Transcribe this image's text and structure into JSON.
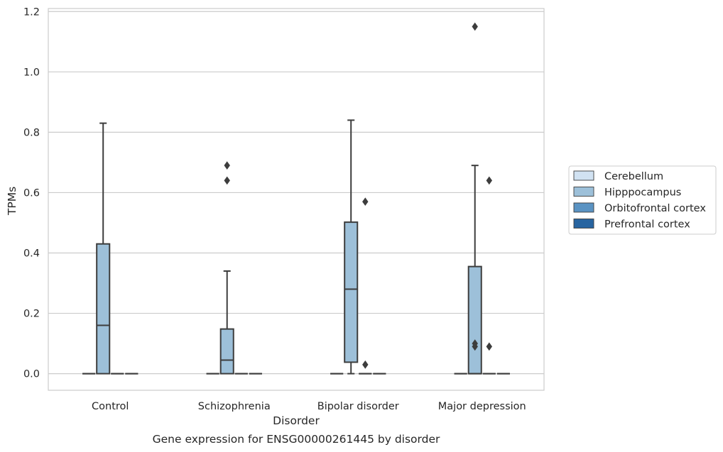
{
  "chart_data": {
    "type": "box",
    "title": "",
    "caption": "Gene expression for ENSG00000261445 by disorder",
    "xlabel": "Disorder",
    "ylabel": "TPMs",
    "ylim": [
      -0.055,
      1.21
    ],
    "yticks": [
      0.0,
      0.2,
      0.4,
      0.6,
      0.8,
      1.0,
      1.2
    ],
    "ytick_labels": [
      "0.0",
      "0.2",
      "0.4",
      "0.6",
      "0.8",
      "1.0",
      "1.2"
    ],
    "grid": "horizontal",
    "legend_position": "right",
    "categories": [
      "Control",
      "Schizophrenia",
      "Bipolar disorder",
      "Major depression"
    ],
    "series": [
      {
        "name": "Cerebellum",
        "color": "#d1e2f2",
        "boxes": [
          {
            "q1": 0,
            "median": 0,
            "q3": 0,
            "whisker_low": 0,
            "whisker_high": 0,
            "outliers": []
          },
          {
            "q1": 0,
            "median": 0,
            "q3": 0,
            "whisker_low": 0,
            "whisker_high": 0,
            "outliers": []
          },
          {
            "q1": 0,
            "median": 0,
            "q3": 0,
            "whisker_low": 0,
            "whisker_high": 0,
            "outliers": []
          },
          {
            "q1": 0,
            "median": 0,
            "q3": 0,
            "whisker_low": 0,
            "whisker_high": 0,
            "outliers": []
          }
        ]
      },
      {
        "name": "Hipppocampus",
        "color": "#9dc0d9",
        "boxes": [
          {
            "q1": 0,
            "median": 0.16,
            "q3": 0.43,
            "whisker_low": 0,
            "whisker_high": 0.83,
            "outliers": []
          },
          {
            "q1": 0,
            "median": 0.045,
            "q3": 0.148,
            "whisker_low": 0,
            "whisker_high": 0.34,
            "outliers": [
              0.64,
              0.69
            ]
          },
          {
            "q1": 0.038,
            "median": 0.28,
            "q3": 0.502,
            "whisker_low": 0,
            "whisker_high": 0.84,
            "outliers": []
          },
          {
            "q1": 0,
            "median": 0,
            "q3": 0.355,
            "whisker_low": 0,
            "whisker_high": 0.69,
            "outliers": [
              1.15,
              0.1,
              0.09
            ]
          }
        ]
      },
      {
        "name": "Orbitofrontal cortex",
        "color": "#5a93c3",
        "boxes": [
          {
            "q1": 0,
            "median": 0,
            "q3": 0,
            "whisker_low": 0,
            "whisker_high": 0,
            "outliers": []
          },
          {
            "q1": 0,
            "median": 0,
            "q3": 0,
            "whisker_low": 0,
            "whisker_high": 0,
            "outliers": []
          },
          {
            "q1": 0,
            "median": 0,
            "q3": 0,
            "whisker_low": 0,
            "whisker_high": 0,
            "outliers": [
              0.57,
              0.03
            ]
          },
          {
            "q1": 0,
            "median": 0,
            "q3": 0,
            "whisker_low": 0,
            "whisker_high": 0,
            "outliers": [
              0.64,
              0.09
            ]
          }
        ]
      },
      {
        "name": "Prefrontal cortex",
        "color": "#2764a0",
        "boxes": [
          {
            "q1": 0,
            "median": 0,
            "q3": 0,
            "whisker_low": 0,
            "whisker_high": 0,
            "outliers": []
          },
          {
            "q1": 0,
            "median": 0,
            "q3": 0,
            "whisker_low": 0,
            "whisker_high": 0,
            "outliers": []
          },
          {
            "q1": 0,
            "median": 0,
            "q3": 0,
            "whisker_low": 0,
            "whisker_high": 0,
            "outliers": []
          },
          {
            "q1": 0,
            "median": 0,
            "q3": 0,
            "whisker_low": 0,
            "whisker_high": 0,
            "outliers": []
          }
        ]
      }
    ]
  }
}
